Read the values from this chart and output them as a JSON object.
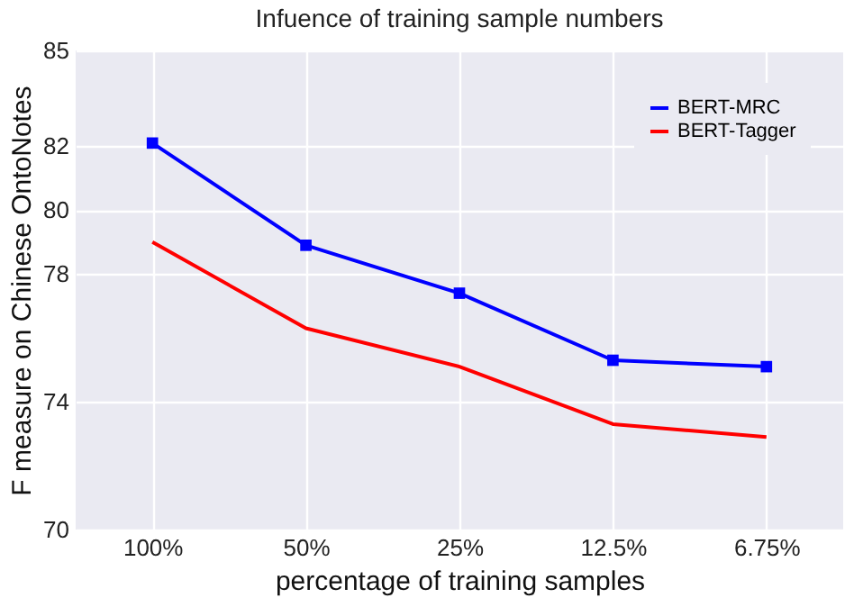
{
  "chart_data": {
    "type": "line",
    "title": "Infuence of training sample numbers",
    "xlabel": "percentage of training samples",
    "ylabel": "F measure on Chinese OntoNotes",
    "categories": [
      "100%",
      "50%",
      "25%",
      "12.5%",
      "6.75%"
    ],
    "series": [
      {
        "name": "BERT-MRC",
        "color": "#0000ff",
        "marker": "square",
        "values": [
          82.1,
          78.9,
          77.4,
          75.3,
          75.1
        ]
      },
      {
        "name": "BERT-Tagger",
        "color": "#ff0000",
        "marker": "none",
        "values": [
          79.0,
          76.3,
          75.1,
          73.3,
          72.9
        ]
      }
    ],
    "ylim": [
      70,
      85
    ],
    "yticks": [
      70,
      74,
      78,
      80,
      82,
      85
    ],
    "grid": true,
    "legend": "top right",
    "line_style": "solid"
  }
}
